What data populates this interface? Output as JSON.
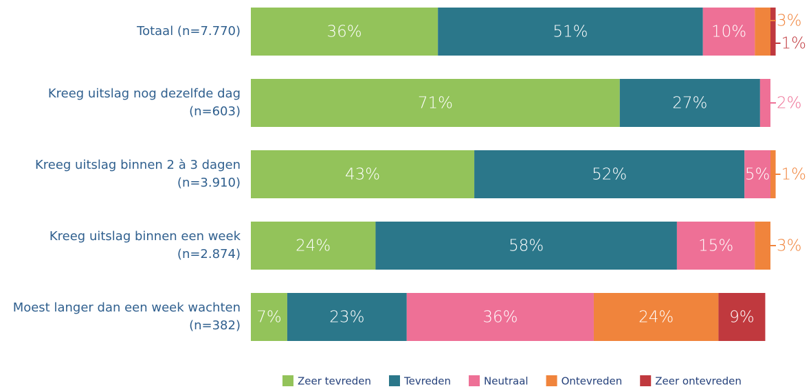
{
  "chart_data": {
    "type": "stacked-bar-horizontal",
    "categories": [
      "Totaal (n=7.770)",
      "Kreeg uitslag nog dezelfde dag (n=603)",
      "Kreeg uitslag binnen 2 à 3 dagen (n=3.910)",
      "Kreeg uitslag binnen een week (n=2.874)",
      "Moest langer dan een week wachten (n=382)"
    ],
    "series": [
      {
        "name": "Zeer tevreden",
        "color": "#93c35a",
        "values": [
          36,
          71,
          43,
          24,
          7
        ],
        "value_labels": [
          "36%",
          "71%",
          "43%",
          "24%",
          "7%"
        ]
      },
      {
        "name": "Tevreden",
        "color": "#2b778a",
        "values": [
          51,
          27,
          52,
          58,
          23
        ],
        "value_labels": [
          "51%",
          "27%",
          "52%",
          "58%",
          "23%"
        ]
      },
      {
        "name": "Neutraal",
        "color": "#ee7096",
        "values": [
          10,
          2,
          5,
          15,
          36
        ],
        "value_labels": [
          "10%",
          "2%",
          "5%",
          "15%",
          "36%"
        ]
      },
      {
        "name": "Ontevreden",
        "color": "#f0843c",
        "values": [
          3,
          null,
          1,
          3,
          24
        ],
        "value_labels": [
          "3%",
          null,
          "1%",
          "3%",
          "24%"
        ]
      },
      {
        "name": "Zeer ontevreden",
        "color": "#c0393e",
        "values": [
          1,
          null,
          null,
          null,
          9
        ],
        "value_labels": [
          "1%",
          null,
          null,
          null,
          "9%"
        ]
      }
    ]
  }
}
